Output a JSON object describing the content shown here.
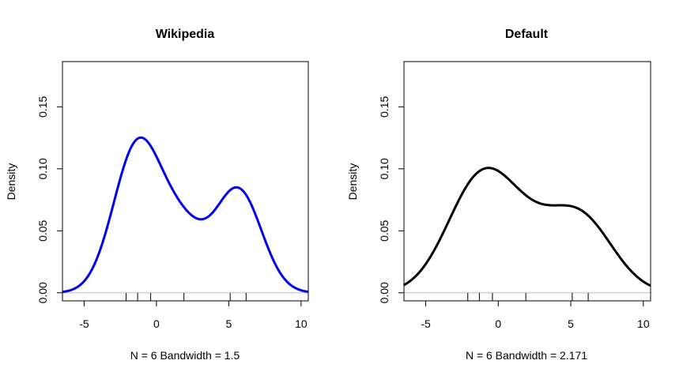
{
  "chart_data": [
    {
      "type": "line",
      "title": "Wikipedia",
      "xlabel": "N = 6   Bandwidth = 1.5",
      "ylabel": "Density",
      "xlim": [
        -6.5,
        10.5
      ],
      "ylim": [
        -0.0065,
        0.1865
      ],
      "x_ticks": [
        -5,
        0,
        5,
        10
      ],
      "x_tick_labels": [
        "-5",
        "0",
        "5",
        "10"
      ],
      "y_ticks": [
        0.0,
        0.05,
        0.1,
        0.15
      ],
      "y_tick_labels": [
        "0.00",
        "0.05",
        "0.10",
        "0.15"
      ],
      "color": "#0000ee",
      "samples": [
        -2.1,
        -1.3,
        -0.4,
        1.9,
        5.1,
        6.2
      ],
      "bandwidth": 1.5,
      "grid": false,
      "legend": "none"
    },
    {
      "type": "line",
      "title": "Default",
      "xlabel": "N = 6   Bandwidth = 2.171",
      "ylabel": "Density",
      "xlim": [
        -6.5,
        10.5
      ],
      "ylim": [
        -0.0065,
        0.1865
      ],
      "x_ticks": [
        -5,
        0,
        5,
        10
      ],
      "x_tick_labels": [
        "-5",
        "0",
        "5",
        "10"
      ],
      "y_ticks": [
        0.0,
        0.05,
        0.1,
        0.15
      ],
      "y_tick_labels": [
        "0.00",
        "0.05",
        "0.10",
        "0.15"
      ],
      "color": "#000000",
      "samples": [
        -2.1,
        -1.3,
        -0.4,
        1.9,
        5.1,
        6.2
      ],
      "bandwidth": 2.171,
      "grid": false,
      "legend": "none"
    }
  ]
}
